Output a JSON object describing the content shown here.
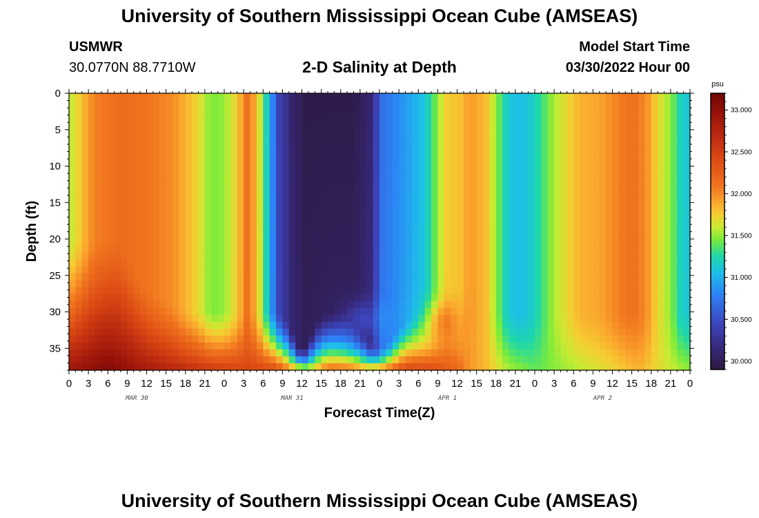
{
  "page": {
    "title": "University of Southern Mississippi Ocean Cube (AMSEAS)",
    "station": "USMWR",
    "coords": "30.0770N  88.7710W",
    "plot_title": "2-D Salinity at Depth",
    "model_start_label": "Model Start Time",
    "model_start_value": "03/30/2022 Hour 00",
    "footer_title": "University of Southern Mississippi Ocean Cube (AMSEAS)"
  },
  "chart_data": {
    "type": "heatmap",
    "title": "2-D Salinity at Depth",
    "xlabel": "Forecast Time(Z)",
    "ylabel": "Depth (ft)",
    "x_unit": "hours since 03/30/2022 00Z",
    "xlim": [
      0,
      96
    ],
    "ylim": [
      38,
      0
    ],
    "x_tick_labels": [
      "0",
      "3",
      "6",
      "9",
      "12",
      "15",
      "18",
      "21",
      "0",
      "3",
      "6",
      "9",
      "12",
      "15",
      "18",
      "21",
      "0",
      "3",
      "6",
      "9",
      "12",
      "15",
      "18",
      "21",
      "0",
      "3",
      "6",
      "9",
      "12",
      "15",
      "18",
      "21",
      "0"
    ],
    "date_labels": [
      {
        "hour": 10.5,
        "label": "MAR 30"
      },
      {
        "hour": 34.5,
        "label": "MAR 31"
      },
      {
        "hour": 58.5,
        "label": "APR 1"
      },
      {
        "hour": 82.5,
        "label": "APR 2"
      }
    ],
    "y_ticks": [
      0,
      5,
      10,
      15,
      20,
      25,
      30,
      35
    ],
    "colorbar": {
      "unit": "psu",
      "min": 29.9,
      "max": 33.2,
      "tick_labels": [
        "33.000",
        "32.500",
        "32.000",
        "31.500",
        "31.000",
        "30.500",
        "30.000"
      ],
      "tick_values": [
        33.0,
        32.5,
        32.0,
        31.5,
        31.0,
        30.5,
        30.0
      ]
    },
    "depth_levels_ft": [
      0,
      10,
      20,
      26,
      30,
      33,
      35,
      36.5,
      38
    ],
    "surface_salinity_by_hour": [
      [
        0,
        31.55
      ],
      [
        2,
        31.8
      ],
      [
        4,
        32.05
      ],
      [
        8,
        32.15
      ],
      [
        12,
        32.1
      ],
      [
        16,
        32.0
      ],
      [
        18,
        31.85
      ],
      [
        20,
        31.7
      ],
      [
        22,
        31.45
      ],
      [
        24,
        31.5
      ],
      [
        26,
        31.75
      ],
      [
        27.5,
        32.1
      ],
      [
        29,
        31.85
      ],
      [
        31,
        31.0
      ],
      [
        32.5,
        30.4
      ],
      [
        34.5,
        30.1
      ],
      [
        36.5,
        29.95
      ],
      [
        40,
        29.95
      ],
      [
        44,
        29.95
      ],
      [
        46.5,
        30.1
      ],
      [
        48.5,
        30.7
      ],
      [
        52,
        30.9
      ],
      [
        55,
        31.1
      ],
      [
        57.5,
        31.6
      ],
      [
        58.5,
        31.75
      ],
      [
        60.5,
        31.8
      ],
      [
        62,
        31.95
      ],
      [
        64.5,
        31.8
      ],
      [
        66,
        31.5
      ],
      [
        67.5,
        31.2
      ],
      [
        69,
        31.05
      ],
      [
        71,
        31.1
      ],
      [
        73,
        31.3
      ],
      [
        75,
        31.55
      ],
      [
        77,
        31.7
      ],
      [
        79,
        31.85
      ],
      [
        82,
        31.9
      ],
      [
        84,
        32.0
      ],
      [
        86,
        32.1
      ],
      [
        88,
        32.1
      ],
      [
        89.5,
        31.95
      ],
      [
        91,
        31.7
      ],
      [
        93,
        31.5
      ],
      [
        94.5,
        31.2
      ],
      [
        96,
        31.1
      ]
    ],
    "bottom_salinity_by_hour": [
      [
        0,
        32.9
      ],
      [
        6,
        33.1
      ],
      [
        12,
        32.85
      ],
      [
        20,
        32.6
      ],
      [
        26,
        32.45
      ],
      [
        32,
        32.4
      ],
      [
        35,
        31.85
      ],
      [
        37,
        31.6
      ],
      [
        40,
        32.1
      ],
      [
        43,
        32.05
      ],
      [
        46,
        31.85
      ],
      [
        48,
        31.95
      ],
      [
        52,
        32.45
      ],
      [
        56,
        32.4
      ],
      [
        60,
        32.2
      ],
      [
        62,
        31.95
      ],
      [
        64,
        31.85
      ],
      [
        68,
        31.55
      ],
      [
        72,
        31.4
      ],
      [
        78,
        31.55
      ],
      [
        84,
        31.7
      ],
      [
        88,
        31.85
      ],
      [
        92,
        31.65
      ],
      [
        96,
        31.5
      ]
    ]
  }
}
